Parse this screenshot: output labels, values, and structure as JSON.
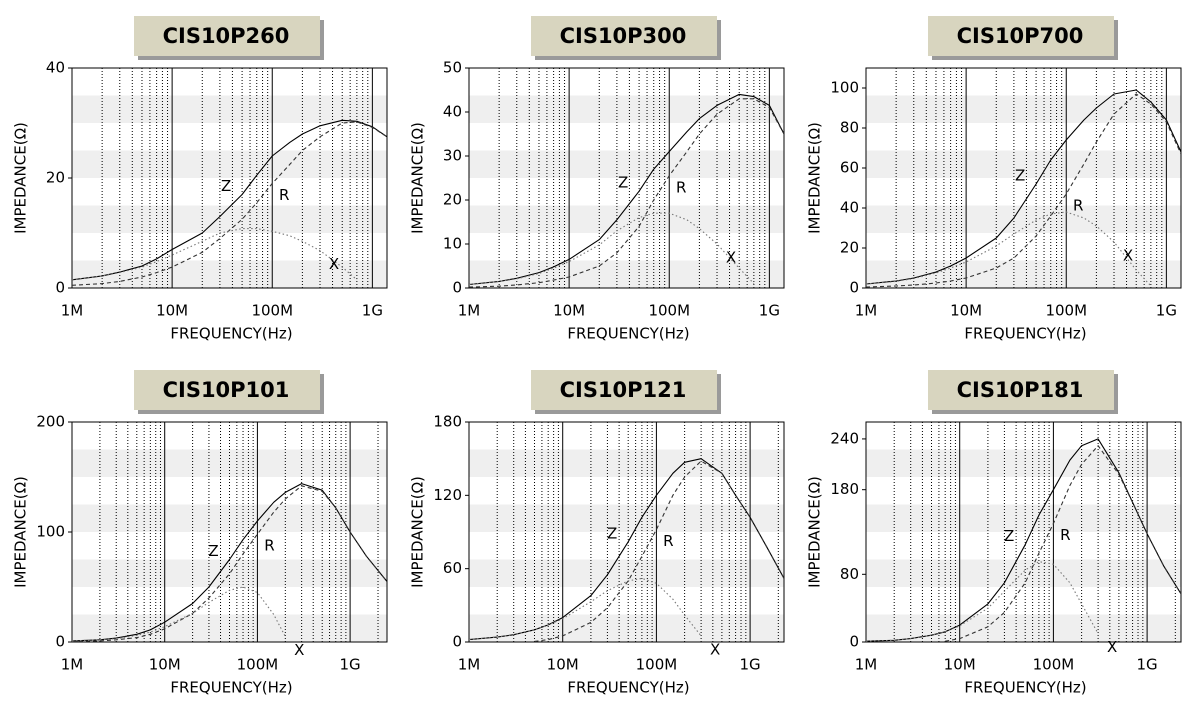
{
  "chart_data": [
    {
      "type": "line",
      "title": "CIS10P260",
      "xlabel": "FREQUENCY(Hz)",
      "ylabel": "IMPEDANCE(Ω)",
      "xscale": "log",
      "xlim": [
        1000000,
        1400000000
      ],
      "xticks": [
        {
          "value": 1000000,
          "label": "1M"
        },
        {
          "value": 10000000,
          "label": "10M"
        },
        {
          "value": 100000000,
          "label": "100M"
        },
        {
          "value": 1000000000,
          "label": "1G"
        }
      ],
      "ylim": [
        0,
        40
      ],
      "yticks": [
        0,
        20,
        40
      ],
      "x": [
        1000000,
        2000000,
        3000000,
        5000000,
        7000000,
        10000000,
        20000000,
        30000000,
        50000000,
        70000000,
        100000000,
        150000000,
        200000000,
        300000000,
        500000000,
        700000000,
        1000000000,
        1400000000
      ],
      "series": [
        {
          "name": "Z",
          "color": "#000000",
          "dash": "solid",
          "values": [
            1.5,
            2.2,
            2.9,
            4.0,
            5.3,
            7.0,
            10,
            13,
            17,
            20.5,
            24,
            26.5,
            28,
            29.5,
            30.5,
            30.3,
            29.3,
            27.5
          ]
        },
        {
          "name": "R",
          "color": "#333333",
          "dash": "dashed",
          "values": [
            0.5,
            0.8,
            1.2,
            2.0,
            2.8,
            3.8,
            6.5,
            9,
            12.5,
            15.5,
            19,
            22.5,
            25,
            27.5,
            30,
            30.2,
            29.2,
            27.5
          ]
        },
        {
          "name": "X",
          "color": "#777777",
          "dash": "dotted",
          "values": [
            1.5,
            2.2,
            2.8,
            3.8,
            4.8,
            6,
            8.5,
            10,
            10.8,
            10.8,
            10.3,
            9.5,
            8.5,
            6.8,
            3.8,
            1.5,
            null,
            null
          ]
        }
      ]
    },
    {
      "type": "line",
      "title": "CIS10P300",
      "xlabel": "FREQUENCY(Hz)",
      "ylabel": "IMPEDANCE(Ω)",
      "xscale": "log",
      "xlim": [
        1000000,
        1400000000
      ],
      "xticks": [
        {
          "value": 1000000,
          "label": "1M"
        },
        {
          "value": 10000000,
          "label": "10M"
        },
        {
          "value": 100000000,
          "label": "100M"
        },
        {
          "value": 1000000000,
          "label": "1G"
        }
      ],
      "ylim": [
        0,
        50
      ],
      "yticks": [
        0,
        10,
        20,
        30,
        40,
        50
      ],
      "x": [
        1000000,
        2000000,
        3000000,
        5000000,
        7000000,
        10000000,
        20000000,
        30000000,
        50000000,
        70000000,
        100000000,
        150000000,
        200000000,
        300000000,
        500000000,
        700000000,
        1000000000,
        1400000000
      ],
      "series": [
        {
          "name": "Z",
          "color": "#000000",
          "dash": "solid",
          "values": [
            0.8,
            1.5,
            2.2,
            3.5,
            4.8,
            6.5,
            11,
            15.5,
            22,
            27,
            31,
            35.5,
            38.5,
            41.5,
            44,
            43.5,
            41.5,
            35
          ]
        },
        {
          "name": "R",
          "color": "#333333",
          "dash": "dashed",
          "values": [
            0.2,
            0.4,
            0.7,
            1.2,
            1.8,
            2.5,
            5,
            8,
            14,
            20,
            25.5,
            31,
            35,
            39.5,
            43,
            43,
            41,
            35
          ]
        },
        {
          "name": "X",
          "color": "#777777",
          "dash": "dotted",
          "values": [
            0.8,
            1.5,
            2.1,
            3.3,
            4.5,
            6,
            9.8,
            13,
            16,
            17,
            17,
            15.5,
            13.5,
            10,
            4.5,
            1,
            null,
            null
          ]
        }
      ]
    },
    {
      "type": "line",
      "title": "CIS10P700",
      "xlabel": "FREQUENCY(Hz)",
      "ylabel": "IMPEDANCE(Ω)",
      "xscale": "log",
      "xlim": [
        1000000,
        1400000000
      ],
      "xticks": [
        {
          "value": 1000000,
          "label": "1M"
        },
        {
          "value": 10000000,
          "label": "10M"
        },
        {
          "value": 100000000,
          "label": "100M"
        },
        {
          "value": 1000000000,
          "label": "1G"
        }
      ],
      "ylim": [
        0,
        110
      ],
      "yticks": [
        0,
        20,
        40,
        60,
        80,
        100
      ],
      "x": [
        1000000,
        2000000,
        3000000,
        5000000,
        7000000,
        10000000,
        20000000,
        30000000,
        50000000,
        70000000,
        100000000,
        150000000,
        200000000,
        300000000,
        500000000,
        700000000,
        1000000000,
        1400000000
      ],
      "series": [
        {
          "name": "Z",
          "color": "#000000",
          "dash": "solid",
          "values": [
            2,
            3.5,
            5,
            8,
            11,
            15,
            25,
            35,
            52,
            64,
            74,
            84,
            90,
            97,
            99,
            93,
            84,
            68
          ]
        },
        {
          "name": "R",
          "color": "#333333",
          "dash": "dashed",
          "values": [
            0.5,
            1,
            1.5,
            2.5,
            3.5,
            5,
            10,
            15,
            26,
            36,
            47,
            62,
            73,
            87,
            97,
            92,
            83,
            67
          ]
        },
        {
          "name": "X",
          "color": "#777777",
          "dash": "dotted",
          "values": [
            2,
            3.3,
            4.7,
            7.5,
            10,
            13,
            21,
            27,
            34,
            37,
            38,
            35,
            31,
            23,
            9,
            1,
            null,
            null
          ]
        }
      ]
    },
    {
      "type": "line",
      "title": "CIS10P101",
      "xlabel": "FREQUENCY(Hz)",
      "ylabel": "IMPEDANCE(Ω)",
      "xscale": "log",
      "xlim": [
        1000000,
        2500000000
      ],
      "xticks": [
        {
          "value": 1000000,
          "label": "1M"
        },
        {
          "value": 10000000,
          "label": "10M"
        },
        {
          "value": 100000000,
          "label": "100M"
        },
        {
          "value": 1000000000,
          "label": "1G"
        }
      ],
      "ylim": [
        0,
        200
      ],
      "yticks": [
        0,
        100,
        200
      ],
      "x": [
        1000000,
        2000000,
        3000000,
        5000000,
        7000000,
        10000000,
        20000000,
        30000000,
        50000000,
        70000000,
        100000000,
        150000000,
        200000000,
        300000000,
        500000000,
        700000000,
        1000000000,
        1500000000,
        2500000000
      ],
      "series": [
        {
          "name": "Z",
          "color": "#000000",
          "dash": "solid",
          "values": [
            1,
            2,
            3.5,
            7,
            11,
            18,
            35,
            50,
            75,
            93,
            110,
            127,
            136,
            144,
            138,
            122,
            100,
            78,
            55
          ]
        },
        {
          "name": "R",
          "color": "#333333",
          "dash": "dashed",
          "values": [
            0.5,
            1,
            2,
            4,
            7,
            12,
            26,
            40,
            62,
            80,
            98,
            118,
            130,
            142,
            137,
            122,
            100,
            78,
            55
          ]
        },
        {
          "name": "X",
          "color": "#777777",
          "dash": "dotted",
          "values": [
            1,
            2,
            3,
            6,
            9,
            14,
            26,
            36,
            47,
            50,
            45,
            25,
            5,
            null,
            null,
            null,
            null,
            null,
            null
          ]
        }
      ]
    },
    {
      "type": "line",
      "title": "CIS10P121",
      "xlabel": "FREQUENCY(Hz)",
      "ylabel": "IMPEDANCE(Ω)",
      "xscale": "log",
      "xlim": [
        1000000,
        2300000000
      ],
      "xticks": [
        {
          "value": 1000000,
          "label": "1M"
        },
        {
          "value": 10000000,
          "label": "10M"
        },
        {
          "value": 100000000,
          "label": "100M"
        },
        {
          "value": 1000000000,
          "label": "1G"
        }
      ],
      "ylim": [
        0,
        180
      ],
      "yticks": [
        0,
        60,
        120,
        180
      ],
      "x": [
        1000000,
        2000000,
        3000000,
        5000000,
        7000000,
        10000000,
        20000000,
        30000000,
        50000000,
        70000000,
        100000000,
        150000000,
        200000000,
        300000000,
        500000000,
        700000000,
        1000000000,
        1500000000,
        2300000000
      ],
      "series": [
        {
          "name": "Z",
          "color": "#000000",
          "dash": "solid",
          "values": [
            2,
            4,
            6,
            10,
            14,
            20,
            38,
            55,
            82,
            102,
            120,
            138,
            147,
            150,
            138,
            120,
            102,
            78,
            52
          ]
        },
        {
          "name": "R",
          "color": "#333333",
          "dash": "dashed",
          "values": [
            null,
            null,
            null,
            0.5,
            2,
            5,
            16,
            28,
            50,
            70,
            92,
            120,
            135,
            148,
            138,
            120,
            102,
            78,
            52
          ]
        },
        {
          "name": "X",
          "color": "#777777",
          "dash": "dotted",
          "values": [
            2,
            4,
            6,
            10,
            14,
            19,
            33,
            42,
            50,
            52,
            48,
            35,
            22,
            5,
            null,
            null,
            null,
            null,
            null
          ]
        }
      ]
    },
    {
      "type": "line",
      "title": "CIS10P181",
      "xlabel": "FREQUENCY(Hz)",
      "ylabel": "IMPEDANCE(Ω)",
      "xscale": "log",
      "xlim": [
        1000000,
        2300000000
      ],
      "xticks": [
        {
          "value": 1000000,
          "label": "1M"
        },
        {
          "value": 10000000,
          "label": "10M"
        },
        {
          "value": 100000000,
          "label": "100M"
        },
        {
          "value": 1000000000,
          "label": "1G"
        }
      ],
      "ylim": [
        0,
        260
      ],
      "yticks": [
        0,
        80,
        180,
        240
      ],
      "x": [
        1000000,
        2000000,
        3000000,
        5000000,
        7000000,
        10000000,
        20000000,
        30000000,
        50000000,
        70000000,
        100000000,
        150000000,
        200000000,
        300000000,
        500000000,
        700000000,
        1000000000,
        1500000000,
        2300000000
      ],
      "series": [
        {
          "name": "Z",
          "color": "#000000",
          "dash": "solid",
          "values": [
            1,
            2,
            4,
            8,
            12,
            20,
            45,
            70,
            115,
            150,
            180,
            215,
            232,
            240,
            200,
            165,
            128,
            90,
            57
          ]
        },
        {
          "name": "R",
          "color": "#333333",
          "dash": "dashed",
          "values": [
            null,
            null,
            null,
            null,
            1,
            4,
            18,
            35,
            70,
            105,
            140,
            185,
            210,
            232,
            198,
            165,
            128,
            90,
            57
          ]
        },
        {
          "name": "X",
          "color": "#777777",
          "dash": "dotted",
          "values": [
            1,
            2,
            4,
            8,
            12,
            19,
            40,
            60,
            85,
            95,
            92,
            70,
            45,
            10,
            null,
            null,
            null,
            null,
            null
          ]
        }
      ]
    }
  ]
}
